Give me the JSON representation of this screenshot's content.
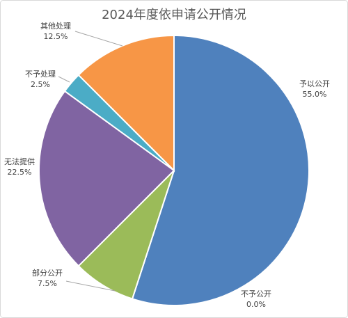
{
  "chart_data": {
    "type": "pie",
    "title": "2024年度依申请公开情况",
    "categories": [
      "予以公开",
      "不予公开",
      "部分公开",
      "无法提供",
      "不予处理",
      "其他处理"
    ],
    "values": [
      55,
      0,
      7.5,
      22.5,
      2.5,
      12.5
    ],
    "value_labels": [
      "55.0%",
      "0.0%",
      "7.5%",
      "22.5%",
      "2.5%",
      "12.5%"
    ],
    "colors": [
      "#4f81bd",
      "#c0504d",
      "#9bbb59",
      "#8064a2",
      "#4bacc6",
      "#f79646"
    ]
  }
}
